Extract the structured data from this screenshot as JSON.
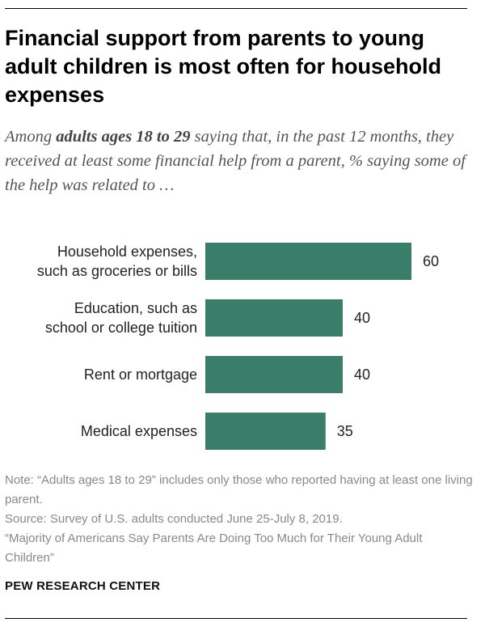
{
  "title": "Financial support from parents to young adult children is most often for household expenses",
  "subtitle": {
    "before": "Among ",
    "bold": "adults ages 18 to 29",
    "after": " saying that, in the past 12 months, they received at least some financial help from a parent, % saying some of the help was related to …"
  },
  "chart_data": {
    "type": "bar",
    "orientation": "horizontal",
    "categories": [
      [
        "Household expenses,",
        "such as groceries or bills"
      ],
      [
        "Education, such as",
        "school or college tuition"
      ],
      [
        "Rent or mortgage"
      ],
      [
        "Medical expenses"
      ]
    ],
    "values": [
      60,
      40,
      40,
      35
    ],
    "bar_color": "#3a7d68",
    "xlim": [
      0,
      60
    ]
  },
  "notes": {
    "note": "Note: “Adults ages 18 to 29” includes only those who reported having at least one living parent.",
    "source": "Source: Survey of U.S. adults conducted June 25-July 8, 2019.",
    "report": "“Majority of Americans Say Parents Are Doing Too Much for Their Young Adult Children”"
  },
  "brand": "PEW RESEARCH CENTER"
}
